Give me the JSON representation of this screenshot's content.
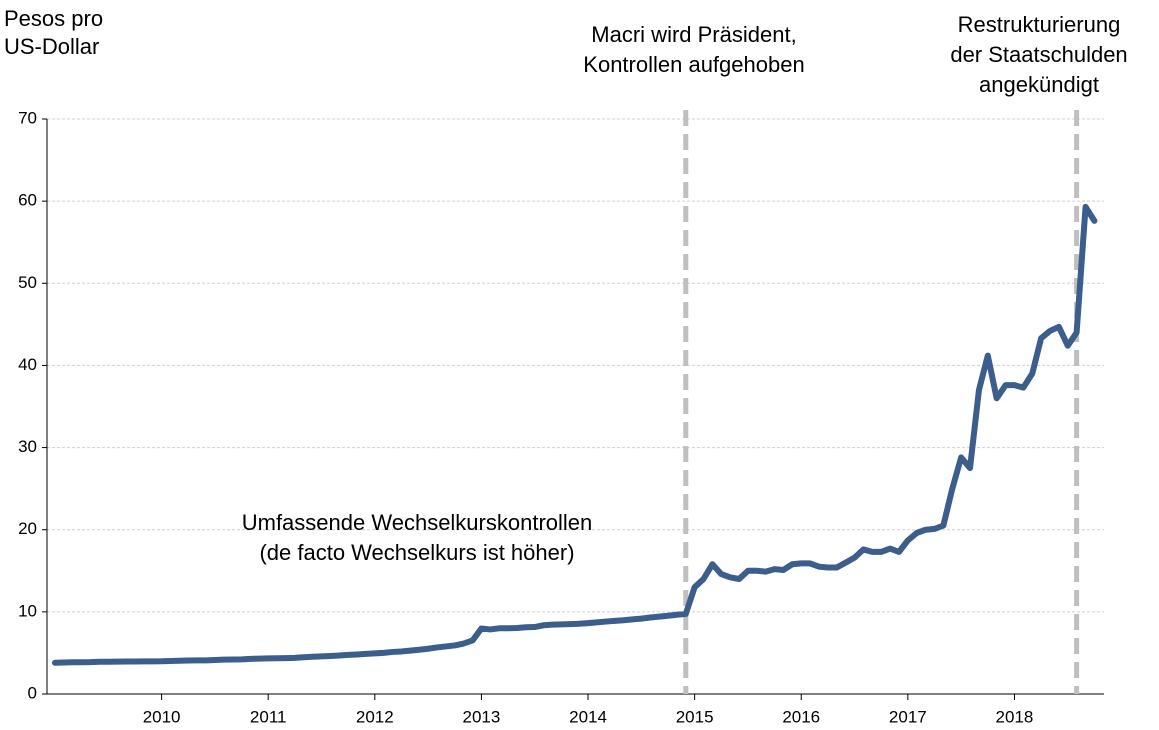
{
  "chart_data": {
    "type": "line",
    "y_label": [
      "Pesos pro",
      "US-Dollar"
    ],
    "x": [
      2010,
      2010.083,
      2010.167,
      2010.25,
      2010.333,
      2010.417,
      2010.5,
      2010.583,
      2010.667,
      2010.75,
      2010.833,
      2010.917,
      2011,
      2011.083,
      2011.167,
      2011.25,
      2011.333,
      2011.417,
      2011.5,
      2011.583,
      2011.667,
      2011.75,
      2011.833,
      2011.917,
      2012,
      2012.083,
      2012.167,
      2012.25,
      2012.333,
      2012.417,
      2012.5,
      2012.583,
      2012.667,
      2012.75,
      2012.833,
      2012.917,
      2013,
      2013.083,
      2013.167,
      2013.25,
      2013.333,
      2013.417,
      2013.5,
      2013.583,
      2013.667,
      2013.75,
      2013.833,
      2013.917,
      2014,
      2014.083,
      2014.167,
      2014.25,
      2014.333,
      2014.417,
      2014.5,
      2014.583,
      2014.667,
      2014.75,
      2014.833,
      2014.917,
      2015,
      2015.083,
      2015.167,
      2015.25,
      2015.333,
      2015.417,
      2015.5,
      2015.583,
      2015.667,
      2015.75,
      2015.833,
      2015.917,
      2016,
      2016.083,
      2016.167,
      2016.25,
      2016.333,
      2016.417,
      2016.5,
      2016.583,
      2016.667,
      2016.75,
      2016.833,
      2016.917,
      2017,
      2017.083,
      2017.167,
      2017.25,
      2017.333,
      2017.417,
      2017.5,
      2017.583,
      2017.667,
      2017.75,
      2017.833,
      2017.917,
      2018,
      2018.083,
      2018.167,
      2018.25,
      2018.333,
      2018.417,
      2018.5,
      2018.583,
      2018.667,
      2018.75,
      2018.833,
      2018.917,
      2019,
      2019.083,
      2019.167,
      2019.25,
      2019.333,
      2019.417,
      2019.5,
      2019.583,
      2019.667,
      2019.75
    ],
    "series": [
      {
        "name": "Pesos pro US-Dollar",
        "color": "#3b5e8c",
        "values": [
          3.8,
          3.84,
          3.86,
          3.87,
          3.88,
          3.93,
          3.93,
          3.94,
          3.95,
          3.96,
          3.97,
          3.97,
          3.98,
          4.02,
          4.05,
          4.08,
          4.09,
          4.1,
          4.14,
          4.19,
          4.2,
          4.22,
          4.28,
          4.3,
          4.33,
          4.35,
          4.37,
          4.4,
          4.48,
          4.53,
          4.58,
          4.63,
          4.69,
          4.76,
          4.81,
          4.88,
          4.95,
          5.01,
          5.12,
          5.18,
          5.28,
          5.39,
          5.51,
          5.67,
          5.79,
          5.91,
          6.14,
          6.52,
          7.98,
          7.86,
          8.0,
          8.0,
          8.04,
          8.13,
          8.15,
          8.37,
          8.45,
          8.48,
          8.51,
          8.55,
          8.63,
          8.72,
          8.82,
          8.9,
          8.98,
          9.09,
          9.18,
          9.31,
          9.42,
          9.53,
          9.65,
          9.75,
          13.0,
          14.0,
          15.8,
          14.6,
          14.2,
          14.0,
          15.0,
          15.0,
          14.9,
          15.2,
          15.1,
          15.8,
          15.9,
          15.9,
          15.5,
          15.4,
          15.4,
          16.0,
          16.6,
          17.6,
          17.3,
          17.3,
          17.7,
          17.3,
          18.7,
          19.6,
          20.0,
          20.1,
          20.5,
          25.0,
          28.8,
          27.5,
          37.0,
          41.2,
          36.0,
          37.6,
          37.6,
          37.3,
          39.0,
          43.3,
          44.2,
          44.7,
          42.4,
          44.0,
          59.3,
          57.6
        ]
      }
    ],
    "xlim": [
      2009.925,
      2019.84
    ],
    "xticks": [
      {
        "value": 2011,
        "label": "2010"
      },
      {
        "value": 2012,
        "label": "2011"
      },
      {
        "value": 2013,
        "label": "2012"
      },
      {
        "value": 2014,
        "label": "2013"
      },
      {
        "value": 2015,
        "label": "2014"
      },
      {
        "value": 2016,
        "label": "2015"
      },
      {
        "value": 2017,
        "label": "2016"
      },
      {
        "value": 2018,
        "label": "2017"
      },
      {
        "value": 2019,
        "label": "2018"
      }
    ],
    "ylim": [
      0,
      70
    ],
    "yticks": [
      0,
      10,
      20,
      30,
      40,
      50,
      60,
      70
    ],
    "grid": true,
    "annotations": [
      {
        "text": [
          "Umfassende Wechselkurskontrollen",
          "(de facto Wechselkurs ist höher)"
        ]
      },
      {
        "text": [
          "Macri wird Präsident,",
          "Kontrollen aufgehoben"
        ],
        "x": 2015.917
      },
      {
        "text": [
          "Restrukturierung",
          "der Staatschulden",
          "angekündigt"
        ],
        "x": 2019.583
      }
    ]
  }
}
